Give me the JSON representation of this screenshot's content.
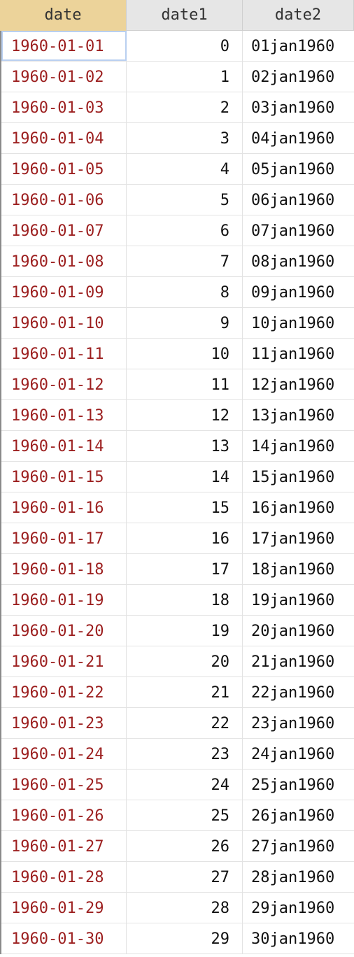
{
  "columns": [
    {
      "name": "date",
      "selected": true
    },
    {
      "name": "date1",
      "selected": false
    },
    {
      "name": "date2",
      "selected": false
    }
  ],
  "colors": {
    "date_text": "#9c1f1f",
    "selected_header": "#ecd39a",
    "header_bg": "#e6e6e6",
    "active_cell_border": "#b9cff0"
  },
  "active_cell": {
    "row": 0,
    "column": "date"
  },
  "rows": [
    {
      "date": "1960-01-01",
      "date1": "0",
      "date2": "01jan1960"
    },
    {
      "date": "1960-01-02",
      "date1": "1",
      "date2": "02jan1960"
    },
    {
      "date": "1960-01-03",
      "date1": "2",
      "date2": "03jan1960"
    },
    {
      "date": "1960-01-04",
      "date1": "3",
      "date2": "04jan1960"
    },
    {
      "date": "1960-01-05",
      "date1": "4",
      "date2": "05jan1960"
    },
    {
      "date": "1960-01-06",
      "date1": "5",
      "date2": "06jan1960"
    },
    {
      "date": "1960-01-07",
      "date1": "6",
      "date2": "07jan1960"
    },
    {
      "date": "1960-01-08",
      "date1": "7",
      "date2": "08jan1960"
    },
    {
      "date": "1960-01-09",
      "date1": "8",
      "date2": "09jan1960"
    },
    {
      "date": "1960-01-10",
      "date1": "9",
      "date2": "10jan1960"
    },
    {
      "date": "1960-01-11",
      "date1": "10",
      "date2": "11jan1960"
    },
    {
      "date": "1960-01-12",
      "date1": "11",
      "date2": "12jan1960"
    },
    {
      "date": "1960-01-13",
      "date1": "12",
      "date2": "13jan1960"
    },
    {
      "date": "1960-01-14",
      "date1": "13",
      "date2": "14jan1960"
    },
    {
      "date": "1960-01-15",
      "date1": "14",
      "date2": "15jan1960"
    },
    {
      "date": "1960-01-16",
      "date1": "15",
      "date2": "16jan1960"
    },
    {
      "date": "1960-01-17",
      "date1": "16",
      "date2": "17jan1960"
    },
    {
      "date": "1960-01-18",
      "date1": "17",
      "date2": "18jan1960"
    },
    {
      "date": "1960-01-19",
      "date1": "18",
      "date2": "19jan1960"
    },
    {
      "date": "1960-01-20",
      "date1": "19",
      "date2": "20jan1960"
    },
    {
      "date": "1960-01-21",
      "date1": "20",
      "date2": "21jan1960"
    },
    {
      "date": "1960-01-22",
      "date1": "21",
      "date2": "22jan1960"
    },
    {
      "date": "1960-01-23",
      "date1": "22",
      "date2": "23jan1960"
    },
    {
      "date": "1960-01-24",
      "date1": "23",
      "date2": "24jan1960"
    },
    {
      "date": "1960-01-25",
      "date1": "24",
      "date2": "25jan1960"
    },
    {
      "date": "1960-01-26",
      "date1": "25",
      "date2": "26jan1960"
    },
    {
      "date": "1960-01-27",
      "date1": "26",
      "date2": "27jan1960"
    },
    {
      "date": "1960-01-28",
      "date1": "27",
      "date2": "28jan1960"
    },
    {
      "date": "1960-01-29",
      "date1": "28",
      "date2": "29jan1960"
    },
    {
      "date": "1960-01-30",
      "date1": "29",
      "date2": "30jan1960"
    }
  ]
}
